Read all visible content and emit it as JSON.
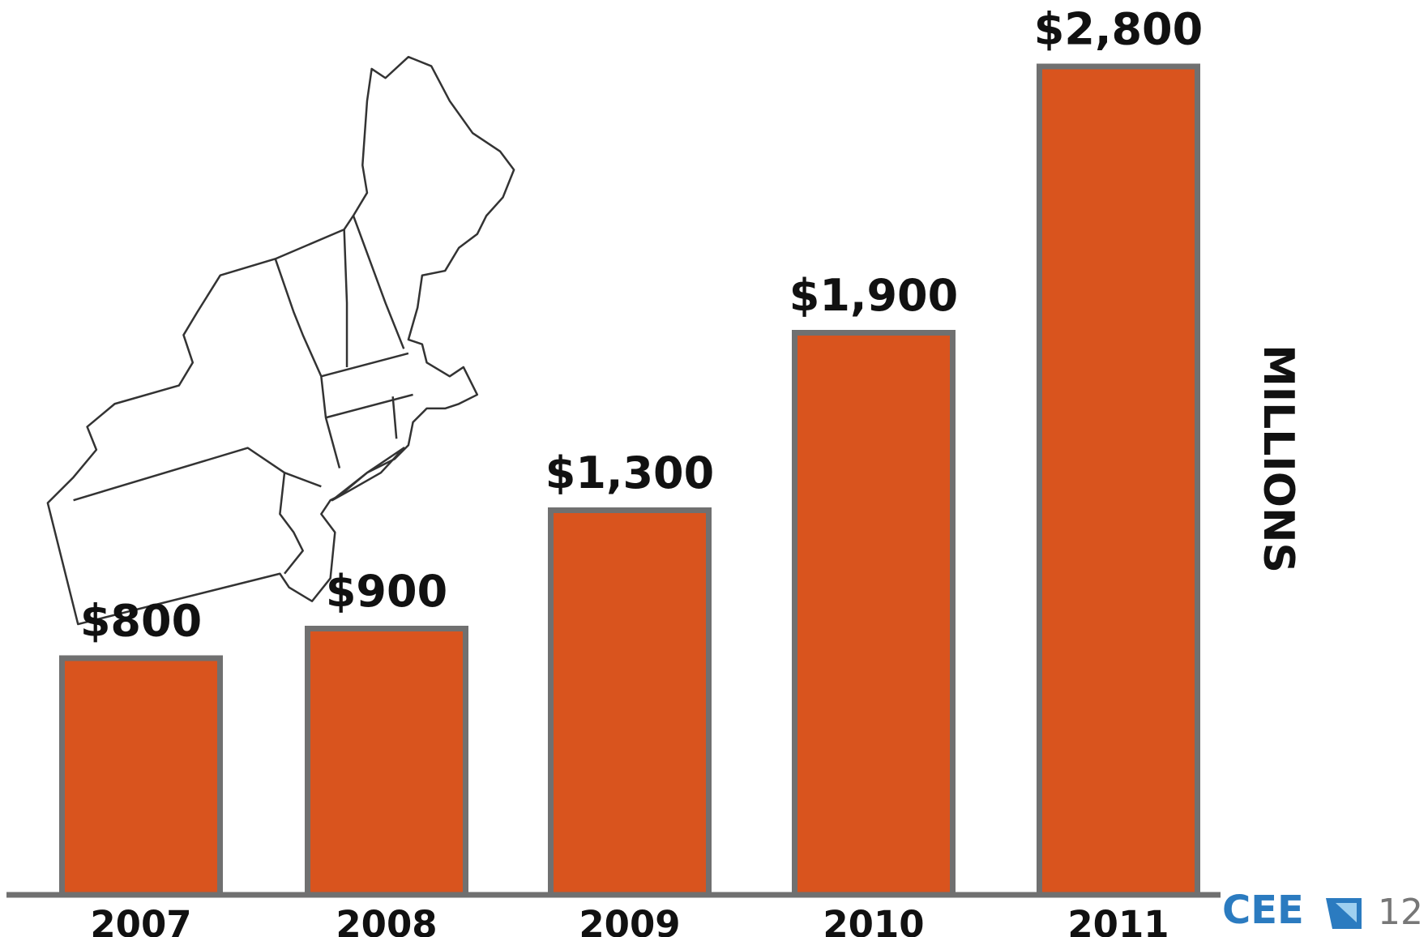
{
  "chart_data": {
    "type": "bar",
    "y_label": "MILLIONS",
    "categories": [
      "2007",
      "2008",
      "2009",
      "2010",
      "2011"
    ],
    "values": [
      800,
      900,
      1300,
      1900,
      2800
    ],
    "value_labels": [
      "$800",
      "$900",
      "$1,300",
      "$1,900",
      "$2,800"
    ],
    "color": "#d9541e",
    "edge_color": "#707070"
  },
  "footer": {
    "logo": "CEE",
    "page": "12"
  }
}
